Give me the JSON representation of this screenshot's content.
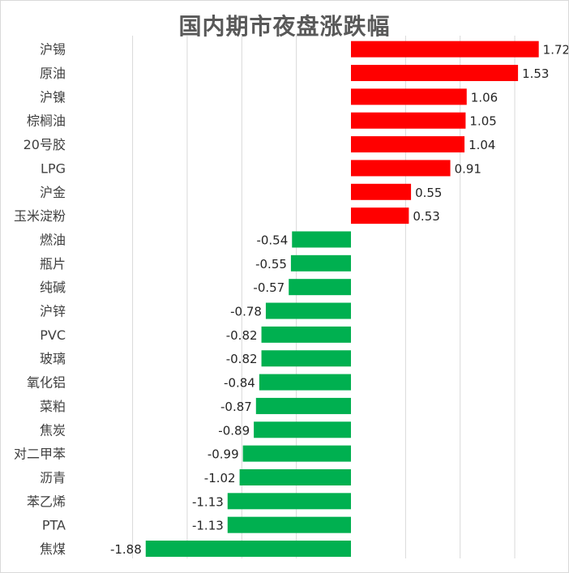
{
  "chart_data": {
    "type": "bar",
    "orientation": "horizontal",
    "title": "国内期市夜盘涨跌幅",
    "categories": [
      "沪锡",
      "原油",
      "沪镍",
      "棕榈油",
      "20号胶",
      "LPG",
      "沪金",
      "玉米淀粉",
      "燃油",
      "瓶片",
      "纯碱",
      "沪锌",
      "PVC",
      "玻璃",
      "氧化铝",
      "菜粕",
      "焦炭",
      "对二甲苯",
      "沥青",
      "苯乙烯",
      "PTA",
      "焦煤"
    ],
    "values": [
      1.72,
      1.53,
      1.06,
      1.05,
      1.04,
      0.91,
      0.55,
      0.53,
      -0.54,
      -0.55,
      -0.57,
      -0.78,
      -0.82,
      -0.82,
      -0.84,
      -0.87,
      -0.89,
      -0.99,
      -1.02,
      -1.13,
      -1.13,
      -1.88
    ],
    "value_labels": [
      "1.72",
      "1.53",
      "1.06",
      "1.05",
      "1.04",
      "0.91",
      "0.55",
      "0.53",
      "-0.54",
      "-0.55",
      "-0.57",
      "-0.78",
      "-0.82",
      "-0.82",
      "-0.84",
      "-0.87",
      "-0.89",
      "-0.99",
      "-1.02",
      "-1.13",
      "-1.13",
      "-1.88"
    ],
    "xlim": [
      -2.5,
      2.0
    ],
    "x_gridlines": [
      -2.0,
      -1.5,
      -1.0,
      -0.5,
      0.0,
      0.5,
      1.0,
      1.5,
      2.0
    ],
    "positive_color": "#ff0000",
    "negative_color": "#00b050",
    "grid": true,
    "legend": "none",
    "xlabel": "",
    "ylabel": ""
  }
}
